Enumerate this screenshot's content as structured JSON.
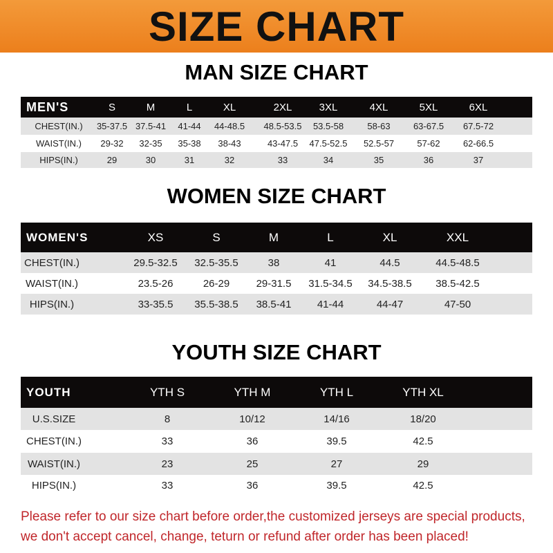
{
  "banner": {
    "title": "SIZE CHART",
    "color": "#ee8524"
  },
  "men": {
    "title": "MAN SIZE CHART",
    "header": [
      "MEN'S",
      "S",
      "M",
      "L",
      "XL",
      "2XL",
      "3XL",
      "4XL",
      "5XL",
      "6XL"
    ],
    "rows": [
      [
        "CHEST(IN.)",
        "35-37.5",
        "37.5-41",
        "41-44",
        "44-48.5",
        "48.5-53.5",
        "53.5-58",
        "58-63",
        "63-67.5",
        "67.5-72"
      ],
      [
        "WAIST(IN.)",
        "29-32",
        "32-35",
        "35-38",
        "38-43",
        "43-47.5",
        "47.5-52.5",
        "52.5-57",
        "57-62",
        "62-66.5"
      ],
      [
        "HIPS(IN.)",
        "29",
        "30",
        "31",
        "32",
        "33",
        "34",
        "35",
        "36",
        "37"
      ]
    ]
  },
  "women": {
    "title": "WOMEN SIZE CHART",
    "header": [
      "WOMEN'S",
      "XS",
      "S",
      "M",
      "L",
      "XL",
      "XXL"
    ],
    "rows": [
      [
        "CHEST(IN.)",
        "29.5-32.5",
        "32.5-35.5",
        "38",
        "41",
        "44.5",
        "44.5-48.5"
      ],
      [
        "WAIST(IN.)",
        "23.5-26",
        "26-29",
        "29-31.5",
        "31.5-34.5",
        "34.5-38.5",
        "38.5-42.5"
      ],
      [
        "HIPS(IN.)",
        "33-35.5",
        "35.5-38.5",
        "38.5-41",
        "41-44",
        "44-47",
        "47-50"
      ]
    ]
  },
  "youth": {
    "title": "YOUTH SIZE CHART",
    "header": [
      "YOUTH",
      "YTH S",
      "YTH M",
      "YTH L",
      "YTH XL"
    ],
    "rows": [
      [
        "U.S.SIZE",
        "8",
        "10/12",
        "14/16",
        "18/20"
      ],
      [
        "CHEST(IN.)",
        "33",
        "36",
        "39.5",
        "42.5"
      ],
      [
        "WAIST(IN.)",
        "23",
        "25",
        "27",
        "29"
      ],
      [
        "HIPS(IN.)",
        "33",
        "36",
        "39.5",
        "42.5"
      ]
    ]
  },
  "note": {
    "line1": "Please refer to our size chart before order,the customized jerseys are special products,",
    "line2": "we don't accept cancel, change, teturn or refund after order has been placed!",
    "color": "#c0262a"
  }
}
